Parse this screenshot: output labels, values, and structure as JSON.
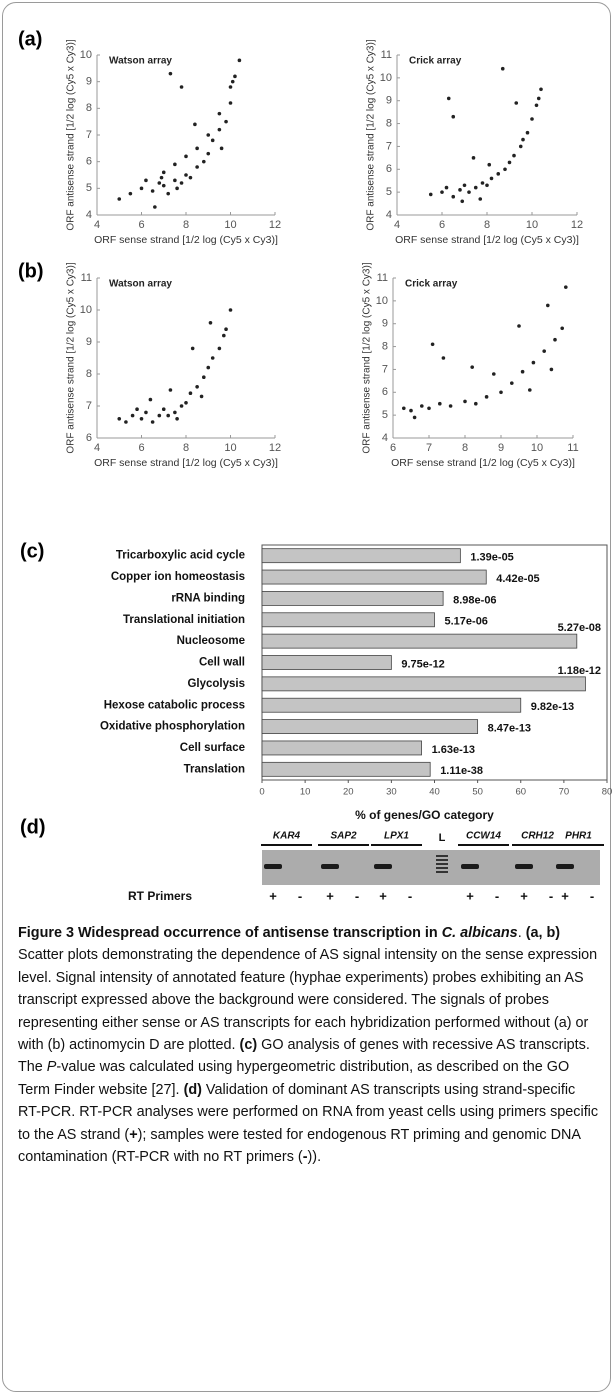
{
  "chart_data": [
    {
      "type": "scatter",
      "title": "Watson array",
      "xlabel": "ORF sense strand [1/2 log (Cy5 x Cy3)]",
      "ylabel": "ORF antisense strand [1/2 log (Cy5 x Cy3)]",
      "color": "#222222",
      "x": [
        5,
        5.5,
        6,
        6.2,
        6.5,
        6.8,
        7,
        7,
        7.2,
        7.5,
        7.5,
        7.8,
        8,
        8,
        8.2,
        8.5,
        8.5,
        8.8,
        9,
        9,
        9.2,
        9.5,
        9.5,
        9.8,
        10,
        10,
        10.2,
        10.4,
        7.3,
        7.8,
        6.6,
        8.4,
        9.6,
        10.1,
        6.9,
        7.6
      ],
      "y": [
        4.6,
        4.8,
        5,
        5.3,
        4.9,
        5.2,
        5.1,
        5.6,
        4.8,
        5.3,
        5.9,
        5.2,
        5.5,
        6.2,
        5.4,
        5.8,
        6.5,
        6,
        6.3,
        7,
        6.8,
        7.2,
        7.8,
        7.5,
        8.2,
        8.8,
        9.2,
        9.8,
        9.3,
        8.8,
        4.3,
        7.4,
        6.5,
        9,
        5.4,
        5
      ],
      "xlim": [
        4,
        12
      ],
      "ylim": [
        4,
        10
      ],
      "xticks": [
        4,
        6,
        8,
        10,
        12
      ],
      "yticks": [
        4,
        5,
        6,
        7,
        8,
        9,
        10
      ]
    },
    {
      "type": "scatter",
      "title": "Crick array",
      "xlabel": "ORF sense strand [1/2 log (Cy5 x Cy3)]",
      "ylabel": "ORF antisense strand [1/2 log (Cy5 x Cy3)]",
      "color": "#222222",
      "x": [
        5.5,
        6,
        6.2,
        6.5,
        6.8,
        7,
        7.2,
        7.5,
        7.8,
        8,
        8.2,
        8.5,
        8.8,
        9,
        9.2,
        9.5,
        9.8,
        10,
        10.2,
        10.4,
        6.3,
        6.5,
        8.7,
        9.3,
        7.4,
        8.1,
        9.6,
        10.3,
        6.9,
        7.7
      ],
      "y": [
        4.9,
        5,
        5.2,
        4.8,
        5.1,
        5.3,
        5,
        5.2,
        5.4,
        5.3,
        5.6,
        5.8,
        6,
        6.3,
        6.6,
        7,
        7.6,
        8.2,
        8.8,
        9.5,
        9.1,
        8.3,
        10.4,
        8.9,
        6.5,
        6.2,
        7.3,
        9.1,
        4.6,
        4.7
      ],
      "xlim": [
        4,
        12
      ],
      "ylim": [
        4,
        11
      ],
      "xticks": [
        4,
        6,
        8,
        10,
        12
      ],
      "yticks": [
        4,
        5,
        6,
        7,
        8,
        9,
        10,
        11
      ]
    },
    {
      "type": "scatter",
      "title": "Watson array",
      "xlabel": "ORF sense strand [1/2 log (Cy5 x Cy3)]",
      "ylabel": "ORF antisense strand [1/2 log (Cy5 x Cy3)]",
      "color": "#222222",
      "x": [
        5,
        5.3,
        5.6,
        6,
        6.2,
        6.5,
        6.8,
        7,
        7.2,
        7.5,
        7.8,
        8,
        8.2,
        8.5,
        8.8,
        9,
        9.2,
        9.5,
        9.8,
        10,
        6.4,
        7.3,
        8.3,
        9.1,
        9.7,
        5.8,
        7.6,
        8.7
      ],
      "y": [
        6.6,
        6.5,
        6.7,
        6.6,
        6.8,
        6.5,
        6.7,
        6.9,
        6.7,
        6.8,
        7,
        7.1,
        7.4,
        7.6,
        7.9,
        8.2,
        8.5,
        8.8,
        9.4,
        10,
        7.2,
        7.5,
        8.8,
        9.6,
        9.2,
        6.9,
        6.6,
        7.3
      ],
      "xlim": [
        4,
        12
      ],
      "ylim": [
        6,
        11
      ],
      "xticks": [
        4,
        6,
        8,
        10,
        12
      ],
      "yticks": [
        6,
        7,
        8,
        9,
        10,
        11
      ]
    },
    {
      "type": "scatter",
      "title": "Crick array",
      "xlabel": "ORF sense strand [1/2 log (Cy5 x Cy3)]",
      "ylabel": "ORF antisense strand [1/2 log (Cy5 x Cy3)]",
      "color": "#222222",
      "x": [
        6.3,
        6.5,
        6.8,
        7,
        7.3,
        7.6,
        8,
        8.3,
        8.6,
        9,
        9.3,
        9.6,
        9.9,
        10.2,
        10.5,
        10.7,
        7.1,
        7.4,
        8.2,
        9.5,
        10.3,
        10.8,
        6.6,
        8.8,
        9.8,
        10.4
      ],
      "y": [
        5.3,
        5.2,
        5.4,
        5.3,
        5.5,
        5.4,
        5.6,
        5.5,
        5.8,
        6,
        6.4,
        6.9,
        7.3,
        7.8,
        8.3,
        8.8,
        8.1,
        7.5,
        7.1,
        8.9,
        9.8,
        10.6,
        4.9,
        6.8,
        6.1,
        7
      ],
      "xlim": [
        6,
        11
      ],
      "ylim": [
        4,
        11
      ],
      "xticks": [
        6,
        7,
        8,
        9,
        10,
        11
      ],
      "yticks": [
        4,
        5,
        6,
        7,
        8,
        9,
        10,
        11
      ]
    },
    {
      "type": "bar",
      "orientation": "horizontal",
      "xlabel": "% of genes/GO category",
      "color": "#c4c4c4",
      "categories": [
        "Tricarboxylic acid cycle",
        "Copper ion homeostasis",
        "rRNA binding",
        "Translational initiation",
        "Nucleosome",
        "Cell wall",
        "Glycolysis",
        "Hexose catabolic process",
        "Oxidative phosphorylation",
        "Cell surface",
        "Translation"
      ],
      "values": [
        46,
        52,
        42,
        40,
        73,
        30,
        75,
        60,
        50,
        37,
        39
      ],
      "annotations": [
        "1.39e-05",
        "4.42e-05",
        "8.98e-06",
        "5.17e-06",
        "5.27e-08",
        "9.75e-12",
        "1.18e-12",
        "9.82e-13",
        "8.47e-13",
        "1.63e-13",
        "1.11e-38"
      ],
      "xlim": [
        0,
        80
      ],
      "xticks": [
        0,
        10,
        20,
        30,
        40,
        50,
        60,
        70,
        80
      ]
    }
  ],
  "figure": {
    "panel_labels": [
      "(a)",
      "(b)",
      "(c)",
      "(d)"
    ],
    "gel": {
      "genes": [
        "KAR4",
        "SAP2",
        "LPX1",
        "CCW14",
        "CRH12",
        "PHR1"
      ],
      "ladder": "L",
      "row_label": "RT Primers",
      "signs": [
        "+",
        "-",
        "+",
        "-",
        "+",
        "-",
        "+",
        "-",
        "+",
        "-",
        "+",
        "-"
      ]
    }
  },
  "caption": {
    "runs": [
      "Figure 3 Widespread occurrence of antisense transcription in ",
      "C. albicans",
      ". ",
      "(a, b)",
      " Scatter plots demonstrating the dependence of AS signal intensity on the sense expression level. Signal intensity of annotated feature (hyphae experiments) probes exhibiting an AS transcript expressed above the background were considered. The signals of probes representing either sense or AS transcripts for each hybridization performed without (a) or with (b) actinomycin D are plotted. ",
      "(c)",
      " GO analysis of genes with recessive AS transcripts. The ",
      "P",
      "-value was calculated using hypergeometric distribution, as described on the GO Term Finder website [27]. ",
      "(d)",
      " Validation of dominant AS transcripts using strand-specific RT-PCR. RT-PCR analyses were performed on RNA from yeast cells using primers specific to the AS strand (",
      "+",
      "); samples were tested for endogenous RT priming and genomic DNA contamination (RT-PCR with no RT primers (",
      "-",
      "))."
    ]
  }
}
